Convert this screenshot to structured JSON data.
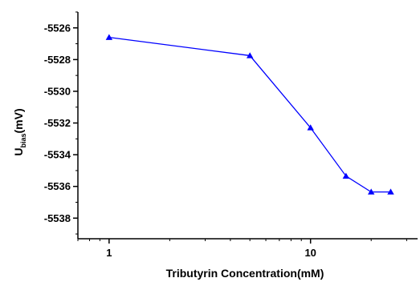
{
  "chart_data": {
    "type": "line",
    "title": "",
    "xlabel": "Tributyrin Concentration(mM)",
    "ylabel": {
      "main": "U",
      "subscript": "bias",
      "suffix": "(mV)"
    },
    "x_scale": "log",
    "xlim": [
      0.7,
      34
    ],
    "ylim": [
      -5539.3,
      -5525
    ],
    "x_ticks": [
      1,
      10
    ],
    "x_tick_labels": [
      "1",
      "10"
    ],
    "y_ticks": [
      -5526,
      -5528,
      -5530,
      -5532,
      -5534,
      -5536,
      -5538
    ],
    "y_tick_labels": [
      "-5526",
      "-5528",
      "-5530",
      "-5532",
      "-5534",
      "-5536",
      "-5538"
    ],
    "grid": false,
    "series": [
      {
        "marker": "triangle",
        "color": "#0000ff",
        "x": [
          1,
          5,
          10,
          15,
          20,
          25
        ],
        "y": [
          -5526.6,
          -5527.75,
          -5532.3,
          -5535.35,
          -5536.35,
          -5536.35
        ]
      }
    ]
  }
}
